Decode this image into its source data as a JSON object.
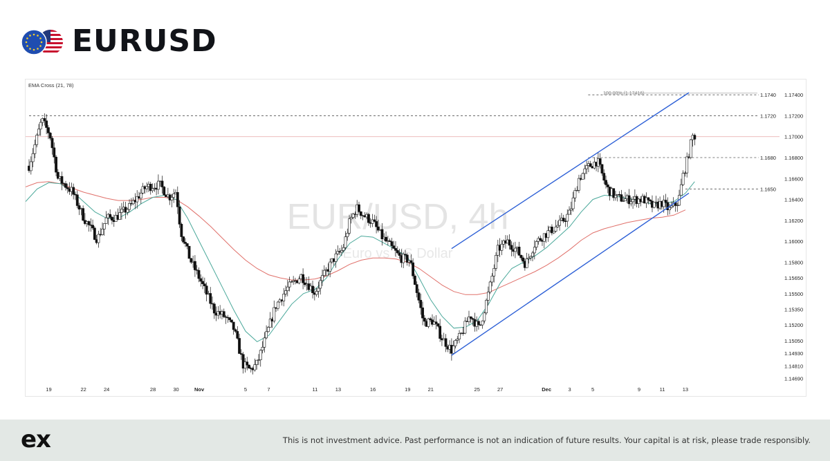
{
  "header": {
    "title": "EURUSD",
    "flags_icon": "eu-us-flags-icon"
  },
  "footer": {
    "logo": "ex",
    "disclaimer": "This is not investment advice. Past performance is not an indication of future results. Your capital is at risk, please trade responsibly."
  },
  "colors": {
    "up_candle": "#ffffff",
    "down_candle": "#111111",
    "ema_fast": "#4aa89a",
    "ema_slow": "#e0706a",
    "channel": "#2c5fd6",
    "eu_blue": "#1f4db0",
    "us_red": "#c8102e"
  },
  "chart_data": {
    "type": "candlestick",
    "indicator_label": "EMA Cross (21, 78)",
    "watermark_symbol": "EUR/USD, 4h",
    "watermark_name": "Euro vs US Dollar",
    "ylim": [
      1.1464,
      1.1752
    ],
    "y_ticks": [
      "1.17400",
      "1.17200",
      "1.17000",
      "1.16800",
      "1.16600",
      "1.16400",
      "1.16200",
      "1.16000",
      "1.15800",
      "1.15650",
      "1.15500",
      "1.15350",
      "1.15200",
      "1.15050",
      "1.14930",
      "1.14810",
      "1.14690"
    ],
    "x_ticks": [
      {
        "label": "19",
        "day": 0
      },
      {
        "label": "22",
        "day": 3
      },
      {
        "label": "24",
        "day": 5
      },
      {
        "label": "28",
        "day": 9
      },
      {
        "label": "30",
        "day": 11
      },
      {
        "label": "Nov",
        "day": 13,
        "bold": true
      },
      {
        "label": "5",
        "day": 17
      },
      {
        "label": "7",
        "day": 19
      },
      {
        "label": "11",
        "day": 23
      },
      {
        "label": "13",
        "day": 25
      },
      {
        "label": "16",
        "day": 28
      },
      {
        "label": "19",
        "day": 31
      },
      {
        "label": "21",
        "day": 33
      },
      {
        "label": "25",
        "day": 37
      },
      {
        "label": "27",
        "day": 39
      },
      {
        "label": "Dec",
        "day": 43,
        "bold": true
      },
      {
        "label": "3",
        "day": 45
      },
      {
        "label": "5",
        "day": 47
      },
      {
        "label": "9",
        "day": 51
      },
      {
        "label": "11",
        "day": 53
      },
      {
        "label": "13",
        "day": 55
      }
    ],
    "x_domain": [
      -2,
      60.5
    ],
    "levels": [
      {
        "label": "1.1740",
        "value": 1.174
      },
      {
        "label": "1.1720",
        "value": 1.172
      },
      {
        "label": "1.1680",
        "value": 1.168
      },
      {
        "label": "1.1650",
        "value": 1.165
      }
    ],
    "current_price": 1.17,
    "fib_label": "100.00% (1.17416)",
    "fib_value": 1.17416,
    "channel_upper": [
      {
        "day": 34.8,
        "price": 1.1593
      },
      {
        "day": 55.3,
        "price": 1.1742
      }
    ],
    "channel_lower": [
      {
        "day": 34.8,
        "price": 1.1491
      },
      {
        "day": 55.3,
        "price": 1.1646
      }
    ],
    "anchors": [
      {
        "day": -1.7,
        "price": 1.1672
      },
      {
        "day": -0.6,
        "price": 1.1716
      },
      {
        "day": 0.1,
        "price": 1.1702
      },
      {
        "day": 0.8,
        "price": 1.166
      },
      {
        "day": 2.0,
        "price": 1.1648
      },
      {
        "day": 3.0,
        "price": 1.1623
      },
      {
        "day": 4.2,
        "price": 1.1602
      },
      {
        "day": 5.0,
        "price": 1.1622
      },
      {
        "day": 5.8,
        "price": 1.1623
      },
      {
        "day": 7.0,
        "price": 1.1633
      },
      {
        "day": 8.4,
        "price": 1.1652
      },
      {
        "day": 9.6,
        "price": 1.1654
      },
      {
        "day": 10.4,
        "price": 1.1642
      },
      {
        "day": 11.0,
        "price": 1.1648
      },
      {
        "day": 11.4,
        "price": 1.161
      },
      {
        "day": 12.2,
        "price": 1.1583
      },
      {
        "day": 13.0,
        "price": 1.1565
      },
      {
        "day": 14.3,
        "price": 1.1534
      },
      {
        "day": 15.2,
        "price": 1.1528
      },
      {
        "day": 16.0,
        "price": 1.1516
      },
      {
        "day": 16.8,
        "price": 1.1482
      },
      {
        "day": 17.4,
        "price": 1.1477
      },
      {
        "day": 18.0,
        "price": 1.1483
      },
      {
        "day": 18.8,
        "price": 1.151
      },
      {
        "day": 19.6,
        "price": 1.1538
      },
      {
        "day": 20.6,
        "price": 1.1555
      },
      {
        "day": 21.8,
        "price": 1.1567
      },
      {
        "day": 23.0,
        "price": 1.1551
      },
      {
        "day": 23.8,
        "price": 1.1568
      },
      {
        "day": 24.6,
        "price": 1.1583
      },
      {
        "day": 25.4,
        "price": 1.1592
      },
      {
        "day": 26.0,
        "price": 1.1619
      },
      {
        "day": 26.6,
        "price": 1.1632
      },
      {
        "day": 27.2,
        "price": 1.1625
      },
      {
        "day": 28.0,
        "price": 1.1618
      },
      {
        "day": 28.8,
        "price": 1.1604
      },
      {
        "day": 29.6,
        "price": 1.1594
      },
      {
        "day": 30.4,
        "price": 1.1584
      },
      {
        "day": 31.2,
        "price": 1.1582
      },
      {
        "day": 31.8,
        "price": 1.1552
      },
      {
        "day": 32.4,
        "price": 1.1522
      },
      {
        "day": 33.2,
        "price": 1.1524
      },
      {
        "day": 34.0,
        "price": 1.1507
      },
      {
        "day": 34.8,
        "price": 1.1496
      },
      {
        "day": 35.6,
        "price": 1.151
      },
      {
        "day": 36.4,
        "price": 1.153
      },
      {
        "day": 37.2,
        "price": 1.1516
      },
      {
        "day": 38.0,
        "price": 1.1551
      },
      {
        "day": 38.8,
        "price": 1.1592
      },
      {
        "day": 39.6,
        "price": 1.16
      },
      {
        "day": 40.4,
        "price": 1.1592
      },
      {
        "day": 41.2,
        "price": 1.1578
      },
      {
        "day": 42.0,
        "price": 1.1598
      },
      {
        "day": 42.8,
        "price": 1.1606
      },
      {
        "day": 43.6,
        "price": 1.1612
      },
      {
        "day": 44.2,
        "price": 1.1617
      },
      {
        "day": 45.0,
        "price": 1.1627
      },
      {
        "day": 45.8,
        "price": 1.166
      },
      {
        "day": 46.6,
        "price": 1.1671
      },
      {
        "day": 47.4,
        "price": 1.1677
      },
      {
        "day": 48.2,
        "price": 1.1651
      },
      {
        "day": 49.0,
        "price": 1.1642
      },
      {
        "day": 49.8,
        "price": 1.164
      },
      {
        "day": 50.6,
        "price": 1.164
      },
      {
        "day": 51.4,
        "price": 1.164
      },
      {
        "day": 52.2,
        "price": 1.1633
      },
      {
        "day": 53.0,
        "price": 1.1637
      },
      {
        "day": 53.6,
        "price": 1.163
      },
      {
        "day": 54.0,
        "price": 1.1634
      },
      {
        "day": 54.4,
        "price": 1.1638
      },
      {
        "day": 54.8,
        "price": 1.1663
      },
      {
        "day": 55.2,
        "price": 1.1679
      },
      {
        "day": 55.6,
        "price": 1.17
      },
      {
        "day": 55.9,
        "price": 1.1701
      }
    ],
    "ema_fast_points": [
      {
        "day": -2,
        "price": 1.1638
      },
      {
        "day": -1,
        "price": 1.165
      },
      {
        "day": 0,
        "price": 1.1656
      },
      {
        "day": 1,
        "price": 1.1655
      },
      {
        "day": 2,
        "price": 1.1648
      },
      {
        "day": 3,
        "price": 1.1638
      },
      {
        "day": 4,
        "price": 1.1628
      },
      {
        "day": 5,
        "price": 1.1622
      },
      {
        "day": 6,
        "price": 1.1622
      },
      {
        "day": 7,
        "price": 1.1628
      },
      {
        "day": 8,
        "price": 1.1636
      },
      {
        "day": 9,
        "price": 1.1642
      },
      {
        "day": 10,
        "price": 1.1644
      },
      {
        "day": 11,
        "price": 1.164
      },
      {
        "day": 12,
        "price": 1.1622
      },
      {
        "day": 13,
        "price": 1.16
      },
      {
        "day": 14,
        "price": 1.1578
      },
      {
        "day": 15,
        "price": 1.1556
      },
      {
        "day": 16,
        "price": 1.1534
      },
      {
        "day": 17,
        "price": 1.1514
      },
      {
        "day": 18,
        "price": 1.1504
      },
      {
        "day": 19,
        "price": 1.151
      },
      {
        "day": 20,
        "price": 1.1525
      },
      {
        "day": 21,
        "price": 1.154
      },
      {
        "day": 22,
        "price": 1.155
      },
      {
        "day": 23,
        "price": 1.1554
      },
      {
        "day": 24,
        "price": 1.1565
      },
      {
        "day": 25,
        "price": 1.1583
      },
      {
        "day": 26,
        "price": 1.1598
      },
      {
        "day": 27,
        "price": 1.1605
      },
      {
        "day": 28,
        "price": 1.1604
      },
      {
        "day": 29,
        "price": 1.1598
      },
      {
        "day": 30,
        "price": 1.1592
      },
      {
        "day": 31,
        "price": 1.1585
      },
      {
        "day": 32,
        "price": 1.1565
      },
      {
        "day": 33,
        "price": 1.1544
      },
      {
        "day": 34,
        "price": 1.1528
      },
      {
        "day": 35,
        "price": 1.1517
      },
      {
        "day": 36,
        "price": 1.1518
      },
      {
        "day": 37,
        "price": 1.1524
      },
      {
        "day": 38,
        "price": 1.154
      },
      {
        "day": 39,
        "price": 1.156
      },
      {
        "day": 40,
        "price": 1.1574
      },
      {
        "day": 41,
        "price": 1.158
      },
      {
        "day": 42,
        "price": 1.1586
      },
      {
        "day": 43,
        "price": 1.1594
      },
      {
        "day": 44,
        "price": 1.1604
      },
      {
        "day": 45,
        "price": 1.1614
      },
      {
        "day": 46,
        "price": 1.1628
      },
      {
        "day": 47,
        "price": 1.164
      },
      {
        "day": 48,
        "price": 1.1644
      },
      {
        "day": 49,
        "price": 1.1643
      },
      {
        "day": 50,
        "price": 1.1641
      },
      {
        "day": 51,
        "price": 1.1639
      },
      {
        "day": 52,
        "price": 1.1636
      },
      {
        "day": 53,
        "price": 1.1636
      },
      {
        "day": 54,
        "price": 1.1638
      },
      {
        "day": 55,
        "price": 1.1646
      },
      {
        "day": 55.8,
        "price": 1.1657
      }
    ],
    "ema_slow_points": [
      {
        "day": -2,
        "price": 1.1652
      },
      {
        "day": -1,
        "price": 1.1656
      },
      {
        "day": 0,
        "price": 1.1657
      },
      {
        "day": 1,
        "price": 1.1655
      },
      {
        "day": 2,
        "price": 1.1651
      },
      {
        "day": 3,
        "price": 1.1647
      },
      {
        "day": 4,
        "price": 1.1644
      },
      {
        "day": 5,
        "price": 1.1641
      },
      {
        "day": 6,
        "price": 1.1639
      },
      {
        "day": 7,
        "price": 1.1639
      },
      {
        "day": 8,
        "price": 1.164
      },
      {
        "day": 9,
        "price": 1.1642
      },
      {
        "day": 10,
        "price": 1.1642
      },
      {
        "day": 11,
        "price": 1.164
      },
      {
        "day": 12,
        "price": 1.1633
      },
      {
        "day": 13,
        "price": 1.1624
      },
      {
        "day": 14,
        "price": 1.1614
      },
      {
        "day": 15,
        "price": 1.1603
      },
      {
        "day": 16,
        "price": 1.1592
      },
      {
        "day": 17,
        "price": 1.1582
      },
      {
        "day": 18,
        "price": 1.1574
      },
      {
        "day": 19,
        "price": 1.1568
      },
      {
        "day": 20,
        "price": 1.1565
      },
      {
        "day": 21,
        "price": 1.1563
      },
      {
        "day": 22,
        "price": 1.1563
      },
      {
        "day": 23,
        "price": 1.1564
      },
      {
        "day": 24,
        "price": 1.1567
      },
      {
        "day": 25,
        "price": 1.1572
      },
      {
        "day": 26,
        "price": 1.1578
      },
      {
        "day": 27,
        "price": 1.1582
      },
      {
        "day": 28,
        "price": 1.1584
      },
      {
        "day": 29,
        "price": 1.1584
      },
      {
        "day": 30,
        "price": 1.1583
      },
      {
        "day": 31,
        "price": 1.158
      },
      {
        "day": 32,
        "price": 1.1574
      },
      {
        "day": 33,
        "price": 1.1566
      },
      {
        "day": 34,
        "price": 1.1558
      },
      {
        "day": 35,
        "price": 1.1552
      },
      {
        "day": 36,
        "price": 1.1549
      },
      {
        "day": 37,
        "price": 1.1549
      },
      {
        "day": 38,
        "price": 1.1551
      },
      {
        "day": 39,
        "price": 1.1556
      },
      {
        "day": 40,
        "price": 1.1561
      },
      {
        "day": 41,
        "price": 1.1566
      },
      {
        "day": 42,
        "price": 1.1571
      },
      {
        "day": 43,
        "price": 1.1577
      },
      {
        "day": 44,
        "price": 1.1584
      },
      {
        "day": 45,
        "price": 1.1592
      },
      {
        "day": 46,
        "price": 1.1601
      },
      {
        "day": 47,
        "price": 1.1608
      },
      {
        "day": 48,
        "price": 1.1612
      },
      {
        "day": 49,
        "price": 1.1615
      },
      {
        "day": 50,
        "price": 1.1618
      },
      {
        "day": 51,
        "price": 1.162
      },
      {
        "day": 52,
        "price": 1.1622
      },
      {
        "day": 53,
        "price": 1.1623
      },
      {
        "day": 54,
        "price": 1.1625
      },
      {
        "day": 55,
        "price": 1.163
      }
    ]
  }
}
